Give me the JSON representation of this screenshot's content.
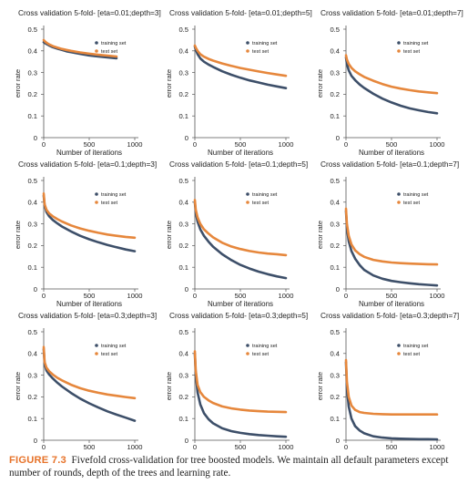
{
  "colors": {
    "training": "#3d4f69",
    "test": "#e6873c",
    "axis": "#555555",
    "text": "#222222"
  },
  "caption": {
    "label": "FIGURE 7.3",
    "text": "Fivefold cross-validation for tree boosted models. We maintain all default parameters except number of rounds, depth of the trees and learning rate."
  },
  "chart_data": [
    {
      "type": "line",
      "title": "Cross validation 5-fold- [eta=0.01;depth=3]",
      "xlabel": "Number of iterations",
      "ylabel": "error rate",
      "xlim": [
        0,
        1000
      ],
      "ylim": [
        0,
        0.5
      ],
      "xticks": [
        0,
        500,
        1000
      ],
      "yticks": [
        0,
        0.1,
        0.2,
        0.3,
        0.4,
        0.5
      ],
      "legend": "right",
      "grid": false,
      "x": [
        0,
        10,
        30,
        60,
        100,
        150,
        200,
        250,
        300,
        400,
        500,
        600,
        700,
        800
      ],
      "series": [
        {
          "name": "training set",
          "values": [
            0.44,
            0.437,
            0.432,
            0.425,
            0.417,
            0.41,
            0.404,
            0.398,
            0.394,
            0.386,
            0.379,
            0.374,
            0.37,
            0.366
          ]
        },
        {
          "name": "test set",
          "values": [
            0.45,
            0.445,
            0.438,
            0.43,
            0.422,
            0.415,
            0.409,
            0.404,
            0.4,
            0.393,
            0.387,
            0.382,
            0.378,
            0.374
          ]
        }
      ]
    },
    {
      "type": "line",
      "title": "Cross validation 5-fold- [eta=0.01;depth=5]",
      "xlabel": "Number of iterations",
      "ylabel": "error rate",
      "xlim": [
        0,
        1000
      ],
      "ylim": [
        0,
        0.5
      ],
      "xticks": [
        0,
        500,
        1000
      ],
      "yticks": [
        0,
        0.1,
        0.2,
        0.3,
        0.4,
        0.5
      ],
      "legend": "right",
      "grid": false,
      "x": [
        0,
        10,
        30,
        60,
        100,
        150,
        200,
        300,
        400,
        500,
        600,
        700,
        800,
        900,
        1000
      ],
      "series": [
        {
          "name": "training set",
          "values": [
            0.42,
            0.405,
            0.385,
            0.365,
            0.35,
            0.337,
            0.326,
            0.306,
            0.29,
            0.276,
            0.264,
            0.254,
            0.244,
            0.236,
            0.228
          ]
        },
        {
          "name": "test set",
          "values": [
            0.425,
            0.415,
            0.4,
            0.385,
            0.373,
            0.363,
            0.355,
            0.342,
            0.331,
            0.321,
            0.313,
            0.305,
            0.298,
            0.291,
            0.285
          ]
        }
      ]
    },
    {
      "type": "line",
      "title": "Cross validation 5-fold- [eta=0.01;depth=7]",
      "xlabel": "Number of iterations",
      "ylabel": "error rate",
      "xlim": [
        0,
        1000
      ],
      "ylim": [
        0,
        0.5
      ],
      "xticks": [
        0,
        500,
        1000
      ],
      "yticks": [
        0,
        0.1,
        0.2,
        0.3,
        0.4,
        0.5
      ],
      "legend": "right",
      "grid": false,
      "x": [
        0,
        10,
        30,
        60,
        100,
        150,
        200,
        300,
        400,
        500,
        600,
        700,
        800,
        900,
        1000
      ],
      "series": [
        {
          "name": "training set",
          "values": [
            0.37,
            0.34,
            0.31,
            0.285,
            0.265,
            0.245,
            0.229,
            0.202,
            0.18,
            0.162,
            0.147,
            0.135,
            0.126,
            0.118,
            0.112
          ]
        },
        {
          "name": "test set",
          "values": [
            0.38,
            0.36,
            0.34,
            0.322,
            0.306,
            0.292,
            0.28,
            0.262,
            0.247,
            0.235,
            0.226,
            0.219,
            0.213,
            0.209,
            0.205
          ]
        }
      ]
    },
    {
      "type": "line",
      "title": "Cross validation 5-fold- [eta=0.1;depth=3]",
      "xlabel": "Number of iterations",
      "ylabel": "error rate",
      "xlim": [
        0,
        1000
      ],
      "ylim": [
        0,
        0.5
      ],
      "xticks": [
        0,
        500,
        1000
      ],
      "yticks": [
        0,
        0.1,
        0.2,
        0.3,
        0.4,
        0.5
      ],
      "legend": "right",
      "grid": false,
      "x": [
        0,
        10,
        30,
        60,
        100,
        150,
        200,
        300,
        400,
        500,
        600,
        700,
        800,
        900,
        1000
      ],
      "series": [
        {
          "name": "training set",
          "values": [
            0.43,
            0.385,
            0.355,
            0.335,
            0.318,
            0.302,
            0.288,
            0.265,
            0.245,
            0.229,
            0.215,
            0.203,
            0.192,
            0.182,
            0.174
          ]
        },
        {
          "name": "test set",
          "values": [
            0.44,
            0.39,
            0.365,
            0.348,
            0.335,
            0.322,
            0.311,
            0.293,
            0.279,
            0.268,
            0.259,
            0.251,
            0.245,
            0.24,
            0.236
          ]
        }
      ]
    },
    {
      "type": "line",
      "title": "Cross validation 5-fold- [eta=0.1;depth=5]",
      "xlabel": "Number of iterations",
      "ylabel": "error rate",
      "xlim": [
        0,
        1000
      ],
      "ylim": [
        0,
        0.5
      ],
      "xticks": [
        0,
        500,
        1000
      ],
      "yticks": [
        0,
        0.1,
        0.2,
        0.3,
        0.4,
        0.5
      ],
      "legend": "right",
      "grid": false,
      "x": [
        0,
        10,
        30,
        60,
        100,
        150,
        200,
        300,
        400,
        500,
        600,
        700,
        800,
        900,
        1000
      ],
      "series": [
        {
          "name": "training set",
          "values": [
            0.4,
            0.35,
            0.31,
            0.275,
            0.245,
            0.218,
            0.195,
            0.16,
            0.133,
            0.111,
            0.094,
            0.08,
            0.068,
            0.058,
            0.05
          ]
        },
        {
          "name": "test set",
          "values": [
            0.41,
            0.365,
            0.33,
            0.3,
            0.275,
            0.255,
            0.238,
            0.213,
            0.196,
            0.184,
            0.175,
            0.168,
            0.163,
            0.16,
            0.156
          ]
        }
      ]
    },
    {
      "type": "line",
      "title": "Cross validation 5-fold- [eta=0.1;depth=7]",
      "xlabel": "Number of iterations",
      "ylabel": "error rate",
      "xlim": [
        0,
        1000
      ],
      "ylim": [
        0,
        0.5
      ],
      "xticks": [
        0,
        500,
        1000
      ],
      "yticks": [
        0,
        0.1,
        0.2,
        0.3,
        0.4,
        0.5
      ],
      "legend": "right",
      "grid": false,
      "x": [
        0,
        10,
        30,
        60,
        100,
        150,
        200,
        300,
        400,
        500,
        600,
        700,
        800,
        900,
        1000
      ],
      "series": [
        {
          "name": "training set",
          "values": [
            0.36,
            0.28,
            0.22,
            0.175,
            0.14,
            0.11,
            0.088,
            0.062,
            0.047,
            0.037,
            0.031,
            0.026,
            0.022,
            0.019,
            0.016
          ]
        },
        {
          "name": "test set",
          "values": [
            0.37,
            0.3,
            0.245,
            0.205,
            0.178,
            0.16,
            0.148,
            0.134,
            0.127,
            0.122,
            0.119,
            0.117,
            0.115,
            0.114,
            0.113
          ]
        }
      ]
    },
    {
      "type": "line",
      "title": "Cross validation 5-fold- [eta=0.3;depth=3]",
      "xlabel": "Number of iterations",
      "ylabel": "error rate",
      "xlim": [
        0,
        1000
      ],
      "ylim": [
        0,
        0.5
      ],
      "xticks": [
        0,
        500,
        1000
      ],
      "yticks": [
        0,
        0.1,
        0.2,
        0.3,
        0.4,
        0.5
      ],
      "legend": "right",
      "grid": false,
      "x": [
        0,
        10,
        30,
        60,
        100,
        150,
        200,
        300,
        400,
        500,
        600,
        700,
        800,
        900,
        1000
      ],
      "series": [
        {
          "name": "training set",
          "values": [
            0.42,
            0.35,
            0.322,
            0.303,
            0.285,
            0.265,
            0.248,
            0.218,
            0.192,
            0.17,
            0.151,
            0.133,
            0.118,
            0.104,
            0.09
          ]
        },
        {
          "name": "test set",
          "values": [
            0.43,
            0.36,
            0.335,
            0.318,
            0.303,
            0.288,
            0.276,
            0.256,
            0.24,
            0.228,
            0.219,
            0.211,
            0.205,
            0.199,
            0.194
          ]
        }
      ]
    },
    {
      "type": "line",
      "title": "Cross validation 5-fold- [eta=0.3;depth=5]",
      "xlabel": "Number of iterations",
      "ylabel": "error rate",
      "xlim": [
        0,
        1000
      ],
      "ylim": [
        0,
        0.5
      ],
      "xticks": [
        0,
        500,
        1000
      ],
      "yticks": [
        0,
        0.1,
        0.2,
        0.3,
        0.4,
        0.5
      ],
      "legend": "right",
      "grid": false,
      "x": [
        0,
        10,
        30,
        60,
        100,
        150,
        200,
        300,
        400,
        500,
        600,
        700,
        800,
        900,
        1000
      ],
      "series": [
        {
          "name": "training set",
          "values": [
            0.4,
            0.3,
            0.22,
            0.165,
            0.125,
            0.097,
            0.078,
            0.055,
            0.042,
            0.034,
            0.028,
            0.024,
            0.021,
            0.018,
            0.016
          ]
        },
        {
          "name": "test set",
          "values": [
            0.41,
            0.32,
            0.255,
            0.222,
            0.2,
            0.184,
            0.172,
            0.156,
            0.147,
            0.141,
            0.137,
            0.134,
            0.132,
            0.131,
            0.13
          ]
        }
      ]
    },
    {
      "type": "line",
      "title": "Cross validation 5-fold- [eta=0.3;depth=7]",
      "xlabel": "Number of iterations",
      "ylabel": "error rate",
      "xlim": [
        0,
        1000
      ],
      "ylim": [
        0,
        0.5
      ],
      "xticks": [
        0,
        500,
        1000
      ],
      "yticks": [
        0,
        0.1,
        0.2,
        0.3,
        0.4,
        0.5
      ],
      "legend": "right",
      "grid": false,
      "x": [
        0,
        10,
        30,
        60,
        100,
        150,
        200,
        300,
        400,
        500,
        600,
        700,
        800,
        900,
        1000
      ],
      "series": [
        {
          "name": "training set",
          "values": [
            0.36,
            0.24,
            0.155,
            0.1,
            0.065,
            0.045,
            0.032,
            0.018,
            0.012,
            0.009,
            0.007,
            0.006,
            0.005,
            0.005,
            0.004
          ]
        },
        {
          "name": "test set",
          "values": [
            0.37,
            0.27,
            0.2,
            0.16,
            0.14,
            0.13,
            0.126,
            0.122,
            0.12,
            0.119,
            0.119,
            0.119,
            0.119,
            0.119,
            0.119
          ]
        }
      ]
    }
  ]
}
